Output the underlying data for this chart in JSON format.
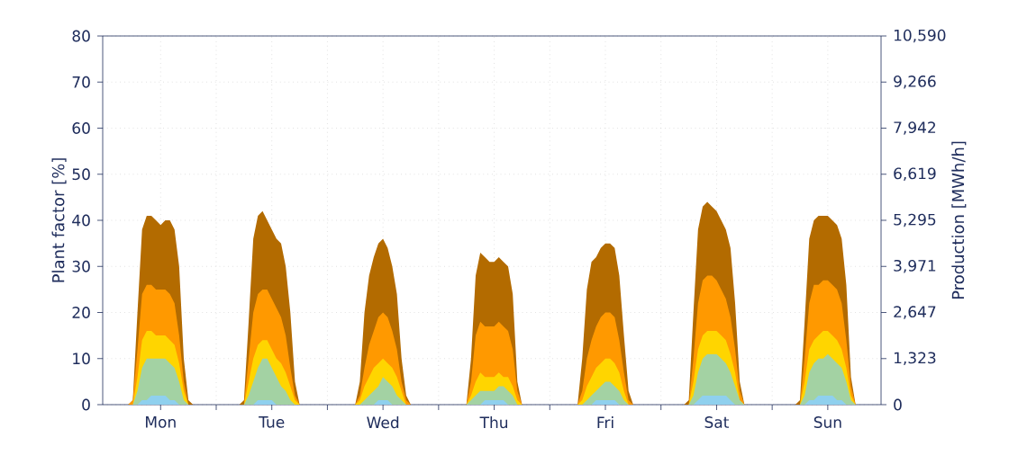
{
  "chart_data": {
    "type": "area",
    "ylabel": "Plant factor [%]",
    "y2label": "Production [MWh/h]",
    "categories": [
      null,
      null,
      null,
      null,
      null,
      null,
      null,
      null,
      null,
      null,
      null,
      null,
      "Mon",
      null,
      null,
      null,
      null,
      null,
      null,
      null,
      null,
      null,
      null,
      null,
      null,
      null,
      null,
      null,
      null,
      null,
      null,
      null,
      null,
      null,
      null,
      null,
      "Tue",
      null,
      null,
      null,
      null,
      null,
      null,
      null,
      null,
      null,
      null,
      null,
      null,
      null,
      null,
      null,
      null,
      null,
      null,
      null,
      null,
      null,
      null,
      null,
      "Wed",
      null,
      null,
      null,
      null,
      null,
      null,
      null,
      null,
      null,
      null,
      null,
      null,
      null,
      null,
      null,
      null,
      null,
      null,
      null,
      null,
      null,
      null,
      null,
      "Thu",
      null,
      null,
      null,
      null,
      null,
      null,
      null,
      null,
      null,
      null,
      null,
      null,
      null,
      null,
      null,
      null,
      null,
      null,
      null,
      null,
      null,
      null,
      null,
      "Fri",
      null,
      null,
      null,
      null,
      null,
      null,
      null,
      null,
      null,
      null,
      null,
      null,
      null,
      null,
      null,
      null,
      null,
      null,
      null,
      null,
      null,
      null,
      null,
      "Sat",
      null,
      null,
      null,
      null,
      null,
      null,
      null,
      null,
      null,
      null,
      null,
      null,
      null,
      null,
      null,
      null,
      null,
      null,
      null,
      null,
      null,
      null,
      null,
      "Sun",
      null,
      null,
      null,
      null,
      null,
      null,
      null,
      null,
      null,
      null,
      null
    ],
    "series": [
      {
        "color": "#b36b00",
        "values": [
          0,
          0,
          0,
          0,
          0,
          0,
          1,
          20,
          38,
          41,
          41,
          40,
          39,
          40,
          40,
          38,
          30,
          10,
          1,
          0,
          0,
          0,
          0,
          0,
          0,
          0,
          0,
          0,
          0,
          0,
          1,
          18,
          36,
          41,
          42,
          40,
          38,
          36,
          35,
          30,
          20,
          5,
          0,
          0,
          0,
          0,
          0,
          0,
          0,
          0,
          0,
          0,
          0,
          0,
          0,
          5,
          20,
          28,
          32,
          35,
          36,
          34,
          30,
          24,
          10,
          2,
          0,
          0,
          0,
          0,
          0,
          0,
          0,
          0,
          0,
          0,
          0,
          0,
          0,
          10,
          28,
          33,
          32,
          31,
          31,
          32,
          31,
          30,
          24,
          5,
          0,
          0,
          0,
          0,
          0,
          0,
          0,
          0,
          0,
          0,
          0,
          0,
          0,
          10,
          25,
          31,
          32,
          34,
          35,
          35,
          34,
          28,
          15,
          3,
          0,
          0,
          0,
          0,
          0,
          0,
          0,
          0,
          0,
          0,
          0,
          0,
          1,
          20,
          38,
          43,
          44,
          43,
          42,
          40,
          38,
          34,
          22,
          5,
          0,
          0,
          0,
          0,
          0,
          0,
          0,
          0,
          0,
          0,
          0,
          0,
          1,
          18,
          36,
          40,
          41,
          41,
          41,
          40,
          39,
          36,
          26,
          6,
          0,
          0,
          0,
          0,
          0,
          0
        ]
      },
      {
        "color": "#ff9900",
        "values": [
          0,
          0,
          0,
          0,
          0,
          0,
          1,
          12,
          24,
          26,
          26,
          25,
          25,
          25,
          24,
          22,
          15,
          5,
          0,
          0,
          0,
          0,
          0,
          0,
          0,
          0,
          0,
          0,
          0,
          0,
          0,
          10,
          20,
          24,
          25,
          25,
          23,
          21,
          19,
          15,
          8,
          2,
          0,
          0,
          0,
          0,
          0,
          0,
          0,
          0,
          0,
          0,
          0,
          0,
          0,
          2,
          8,
          13,
          16,
          19,
          20,
          19,
          16,
          12,
          5,
          1,
          0,
          0,
          0,
          0,
          0,
          0,
          0,
          0,
          0,
          0,
          0,
          0,
          0,
          5,
          15,
          18,
          17,
          17,
          17,
          18,
          17,
          16,
          12,
          3,
          0,
          0,
          0,
          0,
          0,
          0,
          0,
          0,
          0,
          0,
          0,
          0,
          0,
          3,
          10,
          14,
          17,
          19,
          20,
          20,
          19,
          14,
          7,
          1,
          0,
          0,
          0,
          0,
          0,
          0,
          0,
          0,
          0,
          0,
          0,
          0,
          0,
          10,
          22,
          27,
          28,
          28,
          27,
          25,
          23,
          19,
          12,
          3,
          0,
          0,
          0,
          0,
          0,
          0,
          0,
          0,
          0,
          0,
          0,
          0,
          0,
          10,
          22,
          26,
          26,
          27,
          27,
          26,
          25,
          22,
          14,
          4,
          0,
          0,
          0,
          0,
          0,
          0
        ]
      },
      {
        "color": "#ffd500",
        "values": [
          0,
          0,
          0,
          0,
          0,
          0,
          0,
          6,
          14,
          16,
          16,
          15,
          15,
          15,
          14,
          13,
          9,
          3,
          0,
          0,
          0,
          0,
          0,
          0,
          0,
          0,
          0,
          0,
          0,
          0,
          0,
          5,
          10,
          13,
          14,
          14,
          12,
          10,
          9,
          7,
          4,
          1,
          0,
          0,
          0,
          0,
          0,
          0,
          0,
          0,
          0,
          0,
          0,
          0,
          0,
          1,
          4,
          6,
          8,
          9,
          10,
          9,
          8,
          6,
          3,
          0,
          0,
          0,
          0,
          0,
          0,
          0,
          0,
          0,
          0,
          0,
          0,
          0,
          0,
          2,
          5,
          7,
          6,
          6,
          6,
          7,
          6,
          6,
          4,
          1,
          0,
          0,
          0,
          0,
          0,
          0,
          0,
          0,
          0,
          0,
          0,
          0,
          0,
          1,
          4,
          6,
          8,
          9,
          10,
          10,
          9,
          7,
          3,
          0,
          0,
          0,
          0,
          0,
          0,
          0,
          0,
          0,
          0,
          0,
          0,
          0,
          0,
          5,
          12,
          15,
          16,
          16,
          16,
          15,
          14,
          11,
          7,
          1,
          0,
          0,
          0,
          0,
          0,
          0,
          0,
          0,
          0,
          0,
          0,
          0,
          0,
          5,
          12,
          14,
          15,
          16,
          16,
          15,
          14,
          12,
          8,
          2,
          0,
          0,
          0,
          0,
          0,
          0
        ]
      },
      {
        "color": "#a3d2a3",
        "values": [
          0,
          0,
          0,
          0,
          0,
          0,
          0,
          3,
          8,
          10,
          10,
          10,
          10,
          10,
          9,
          8,
          5,
          1,
          0,
          0,
          0,
          0,
          0,
          0,
          0,
          0,
          0,
          0,
          0,
          0,
          0,
          2,
          5,
          8,
          10,
          10,
          8,
          6,
          4,
          3,
          1,
          0,
          0,
          0,
          0,
          0,
          0,
          0,
          0,
          0,
          0,
          0,
          0,
          0,
          0,
          0,
          1,
          2,
          3,
          4,
          6,
          5,
          4,
          2,
          1,
          0,
          0,
          0,
          0,
          0,
          0,
          0,
          0,
          0,
          0,
          0,
          0,
          0,
          0,
          1,
          2,
          3,
          3,
          3,
          3,
          4,
          4,
          3,
          2,
          0,
          0,
          0,
          0,
          0,
          0,
          0,
          0,
          0,
          0,
          0,
          0,
          0,
          0,
          0,
          1,
          2,
          3,
          4,
          5,
          5,
          4,
          3,
          1,
          0,
          0,
          0,
          0,
          0,
          0,
          0,
          0,
          0,
          0,
          0,
          0,
          0,
          0,
          2,
          7,
          10,
          11,
          11,
          11,
          10,
          9,
          7,
          4,
          1,
          0,
          0,
          0,
          0,
          0,
          0,
          0,
          0,
          0,
          0,
          0,
          0,
          0,
          2,
          7,
          9,
          10,
          10,
          11,
          10,
          9,
          8,
          5,
          1,
          0,
          0,
          0,
          0,
          0,
          0
        ]
      },
      {
        "color": "#8fd0ee",
        "values": [
          0,
          0,
          0,
          0,
          0,
          0,
          0,
          0,
          1,
          1,
          2,
          2,
          2,
          2,
          1,
          1,
          0,
          0,
          0,
          0,
          0,
          0,
          0,
          0,
          0,
          0,
          0,
          0,
          0,
          0,
          0,
          0,
          0,
          1,
          1,
          1,
          1,
          0,
          0,
          0,
          0,
          0,
          0,
          0,
          0,
          0,
          0,
          0,
          0,
          0,
          0,
          0,
          0,
          0,
          0,
          0,
          0,
          0,
          0,
          1,
          1,
          1,
          0,
          0,
          0,
          0,
          0,
          0,
          0,
          0,
          0,
          0,
          0,
          0,
          0,
          0,
          0,
          0,
          0,
          0,
          0,
          0,
          1,
          1,
          1,
          1,
          1,
          0,
          0,
          0,
          0,
          0,
          0,
          0,
          0,
          0,
          0,
          0,
          0,
          0,
          0,
          0,
          0,
          0,
          0,
          0,
          1,
          1,
          1,
          1,
          1,
          0,
          0,
          0,
          0,
          0,
          0,
          0,
          0,
          0,
          0,
          0,
          0,
          0,
          0,
          0,
          0,
          0,
          1,
          2,
          2,
          2,
          2,
          2,
          2,
          1,
          0,
          0,
          0,
          0,
          0,
          0,
          0,
          0,
          0,
          0,
          0,
          0,
          0,
          0,
          0,
          0,
          1,
          1,
          2,
          2,
          2,
          2,
          1,
          1,
          0,
          0,
          0,
          0,
          0,
          0,
          0,
          0
        ]
      }
    ],
    "ylim": [
      0,
      80
    ],
    "yticks": [
      0,
      10,
      20,
      30,
      40,
      50,
      60,
      70,
      80
    ],
    "y2lim": [
      0,
      10590
    ],
    "y2ticks": [
      {
        "value": 0,
        "label": "0"
      },
      {
        "value": 1323,
        "label": "1,323"
      },
      {
        "value": 2647,
        "label": "2,647"
      },
      {
        "value": 3971,
        "label": "3,971"
      },
      {
        "value": 5295,
        "label": "5,295"
      },
      {
        "value": 6619,
        "label": "6,619"
      },
      {
        "value": 7942,
        "label": "7,942"
      },
      {
        "value": 9266,
        "label": "9,266"
      },
      {
        "value": 10590,
        "label": "10,590"
      }
    ],
    "grid": true
  }
}
